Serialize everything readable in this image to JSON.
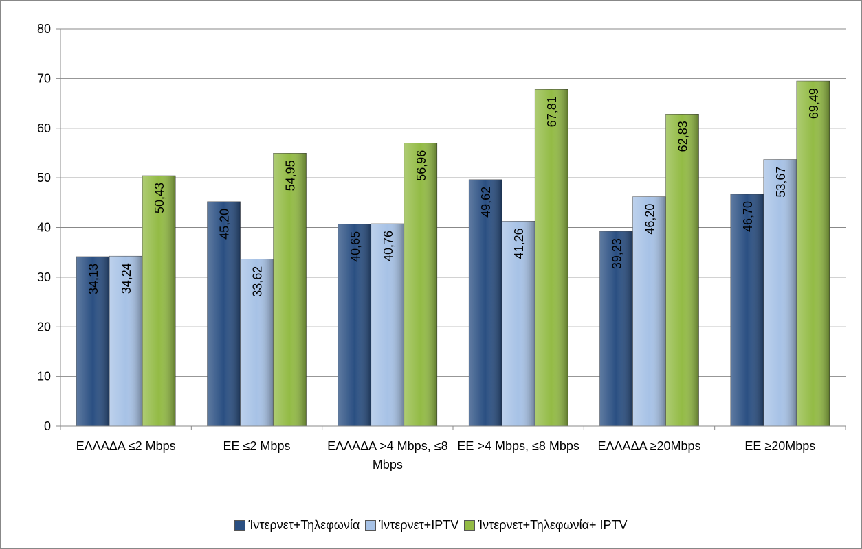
{
  "chart_data": {
    "type": "bar",
    "categories": [
      "ΕΛΛΑΔΑ ≤2 Mbps",
      "ΕΕ ≤2 Mbps",
      "ΕΛΛΑΔΑ >4 Mbps, ≤8 Mbps",
      "ΕΕ >4 Mbps, ≤8 Mbps",
      "ΕΛΛΑΔΑ ≥20Mbps",
      "ΕΕ  ≥20Mbps"
    ],
    "series": [
      {
        "name": "Ίντερνετ+Τηλεφωνία",
        "color": "#2a4f82",
        "values": [
          34.13,
          45.2,
          40.65,
          49.62,
          39.23,
          46.7
        ],
        "value_labels": [
          "34,13",
          "45,20",
          "40,65",
          "49,62",
          "39,23",
          "46,70"
        ]
      },
      {
        "name": "Ίντερνετ+IPTV",
        "color": "#a7c2e6",
        "values": [
          34.24,
          33.62,
          40.76,
          41.26,
          46.2,
          53.67
        ],
        "value_labels": [
          "34,24",
          "33,62",
          "40,76",
          "41,26",
          "46,20",
          "53,67"
        ]
      },
      {
        "name": "Ίντερνετ+Τηλεφωνία+ IPTV",
        "color": "#93bb45",
        "values": [
          50.43,
          54.95,
          56.96,
          67.81,
          62.83,
          69.49
        ],
        "value_labels": [
          "50,43",
          "54,95",
          "56,96",
          "67,81",
          "62,83",
          "69,49"
        ]
      }
    ],
    "ylim": [
      0,
      80
    ],
    "yticks": [
      0,
      10,
      20,
      30,
      40,
      50,
      60,
      70,
      80
    ],
    "grid": true,
    "legend": "bottom"
  }
}
